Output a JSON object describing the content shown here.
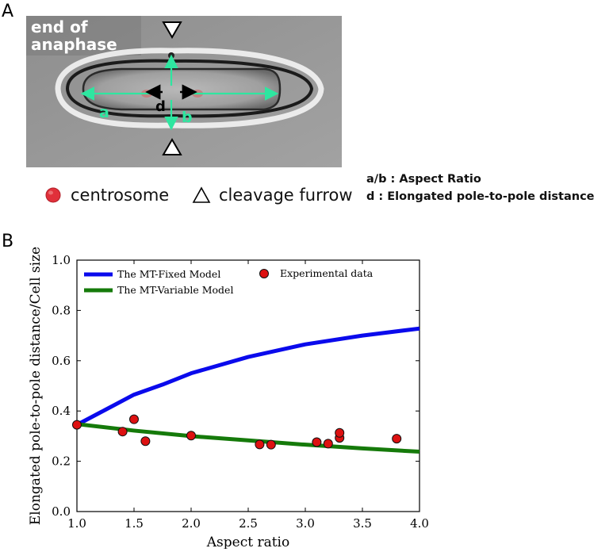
{
  "panel_a": {
    "label": "A",
    "stage_label": [
      "end of",
      "anaphase"
    ],
    "measure_labels": {
      "a": "a",
      "b": "b",
      "d": "d"
    },
    "legend": {
      "centrosome": "centrosome",
      "cleavage_furrow": "cleavage furrow"
    },
    "definitions": {
      "ab": "a/b : Aspect Ratio",
      "d": "d : Elongated pole-to-pole distance"
    },
    "colors": {
      "measure": "#2ee6a0",
      "centrosome": "#e0303a",
      "d_arrow": "#000000"
    }
  },
  "panel_b": {
    "label": "B"
  },
  "chart_data": {
    "type": "line",
    "xlabel": "Aspect ratio",
    "ylabel": "Elongated pole-to-pole distance/Cell size",
    "xlim": [
      1.0,
      4.0
    ],
    "ylim": [
      0.0,
      1.0
    ],
    "xticks": [
      "1.0",
      "1.5",
      "2.0",
      "2.5",
      "3.0",
      "3.5",
      "4.0"
    ],
    "yticks": [
      "0.0",
      "0.2",
      "0.4",
      "0.6",
      "0.8",
      "1.0"
    ],
    "legend_position": "top",
    "series": [
      {
        "name": "The MT-Fixed Model",
        "kind": "line",
        "color": "#0a0aec",
        "x": [
          1.0,
          1.25,
          1.5,
          1.75,
          2.0,
          2.5,
          3.0,
          3.5,
          4.0
        ],
        "y": [
          0.345,
          0.405,
          0.465,
          0.505,
          0.55,
          0.615,
          0.665,
          0.7,
          0.728
        ]
      },
      {
        "name": "The MT-Variable Model",
        "kind": "line",
        "color": "#157a0a",
        "x": [
          1.0,
          1.5,
          2.0,
          2.5,
          3.0,
          3.5,
          4.0
        ],
        "y": [
          0.348,
          0.322,
          0.3,
          0.283,
          0.266,
          0.251,
          0.238
        ]
      },
      {
        "name": "Experimental data",
        "kind": "scatter",
        "color": "#dd1111",
        "x": [
          1.0,
          1.4,
          1.5,
          1.6,
          2.0,
          2.6,
          2.7,
          3.1,
          3.2,
          3.3,
          3.3,
          3.8
        ],
        "y": [
          0.345,
          0.318,
          0.367,
          0.28,
          0.302,
          0.267,
          0.266,
          0.276,
          0.27,
          0.293,
          0.313,
          0.29
        ]
      }
    ]
  }
}
